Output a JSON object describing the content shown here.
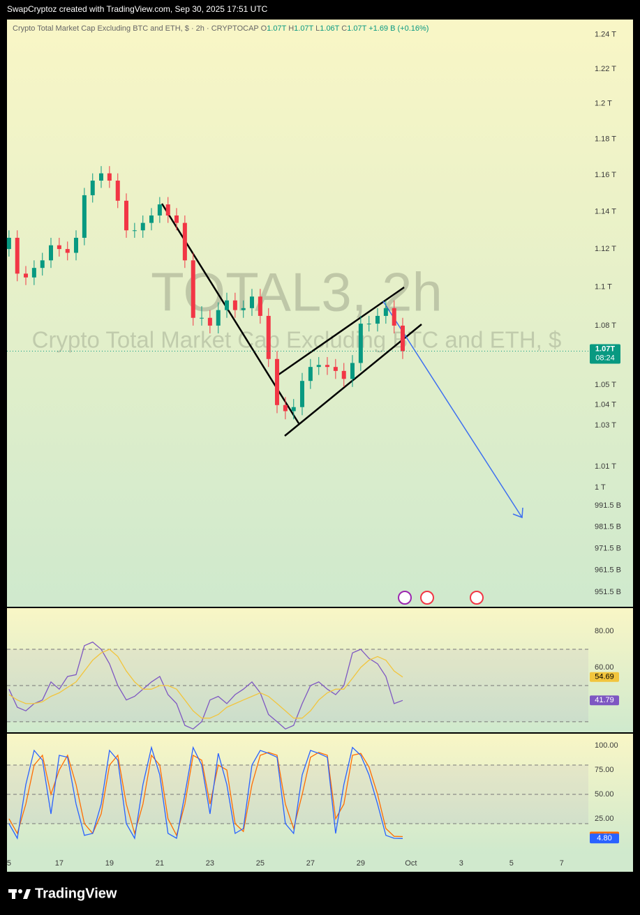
{
  "header": {
    "text": "SwapCryptoz created with TradingView.com, Sep 30, 2025 17:51 UTC"
  },
  "footer": {
    "brand": "TradingView"
  },
  "chart_data": [
    {
      "type": "candlestick",
      "legend": {
        "title": "Crypto Total Market Cap Excluding BTC and ETH, $ · 2h · CRYPTOCAP",
        "o_label": "O",
        "o": "1.07T",
        "h_label": "H",
        "h": "1.07T",
        "l_label": "L",
        "l": "1.06T",
        "c_label": "C",
        "c": "1.07T",
        "change": "+1.69 B (+0.16%)"
      },
      "watermark_symbol": "TOTAL3, 2h",
      "watermark_description": "Crypto Total Market Cap Excluding BTC and ETH, $",
      "last_price_label": "1.07T",
      "countdown": "08:24",
      "log_scale": true,
      "up_color": "#089981",
      "down_color": "#f23645",
      "x": [
        15,
        15.33,
        15.67,
        16,
        16.33,
        16.67,
        17,
        17.33,
        17.67,
        18,
        18.33,
        18.67,
        19,
        19.33,
        19.67,
        20,
        20.33,
        20.67,
        21,
        21.33,
        21.67,
        22,
        22.33,
        22.67,
        23,
        23.33,
        23.67,
        24,
        24.33,
        24.67,
        25,
        25.33,
        25.67,
        26,
        26.33,
        26.67,
        27,
        27.33,
        27.67,
        28,
        28.33,
        28.67,
        29,
        29.33,
        29.67,
        30,
        30.33,
        30.67
      ],
      "open": [
        1120,
        1126,
        1107,
        1105,
        1110,
        1114,
        1122,
        1120,
        1118,
        1126,
        1149,
        1157,
        1161,
        1157,
        1146,
        1130,
        1130,
        1134,
        1138,
        1144,
        1138,
        1134,
        1114,
        1084,
        1084,
        1080,
        1088,
        1093,
        1088,
        1089,
        1095,
        1085,
        1063,
        1040,
        1037,
        1039,
        1052,
        1059,
        1060,
        1059,
        1057,
        1053,
        1061,
        1081,
        1081,
        1085,
        1089,
        1080
      ],
      "high": [
        1130,
        1130,
        1111,
        1114,
        1118,
        1126,
        1126,
        1124,
        1130,
        1153,
        1161,
        1165,
        1165,
        1161,
        1150,
        1134,
        1138,
        1142,
        1148,
        1148,
        1142,
        1138,
        1118,
        1090,
        1088,
        1092,
        1097,
        1097,
        1093,
        1099,
        1099,
        1089,
        1067,
        1044,
        1043,
        1056,
        1063,
        1064,
        1064,
        1063,
        1061,
        1065,
        1085,
        1085,
        1089,
        1093,
        1093,
        1084
      ],
      "low": [
        1116,
        1103,
        1101,
        1101,
        1106,
        1110,
        1116,
        1114,
        1114,
        1122,
        1145,
        1153,
        1153,
        1142,
        1126,
        1126,
        1126,
        1130,
        1134,
        1134,
        1130,
        1110,
        1080,
        1080,
        1076,
        1076,
        1084,
        1084,
        1084,
        1085,
        1081,
        1059,
        1036,
        1033,
        1033,
        1035,
        1048,
        1055,
        1055,
        1053,
        1049,
        1049,
        1057,
        1077,
        1077,
        1081,
        1076,
        1063
      ],
      "close": [
        1126,
        1107,
        1105,
        1110,
        1114,
        1122,
        1120,
        1118,
        1126,
        1149,
        1157,
        1161,
        1157,
        1146,
        1130,
        1130,
        1134,
        1138,
        1144,
        1138,
        1134,
        1114,
        1084,
        1084,
        1080,
        1088,
        1093,
        1088,
        1089,
        1095,
        1085,
        1063,
        1040,
        1037,
        1039,
        1052,
        1059,
        1060,
        1059,
        1057,
        1053,
        1061,
        1081,
        1081,
        1085,
        1089,
        1080,
        1067
      ],
      "xlim": [
        14.92,
        38.06
      ],
      "ylim": [
        945,
        1249
      ],
      "yticks": [
        {
          "value": 1240,
          "label": "1.24 T"
        },
        {
          "value": 1220,
          "label": "1.22 T"
        },
        {
          "value": 1200,
          "label": "1.2 T"
        },
        {
          "value": 1180,
          "label": "1.18 T"
        },
        {
          "value": 1160,
          "label": "1.16 T"
        },
        {
          "value": 1140,
          "label": "1.14 T"
        },
        {
          "value": 1120,
          "label": "1.12 T"
        },
        {
          "value": 1100,
          "label": "1.1 T"
        },
        {
          "value": 1080,
          "label": "1.08 T"
        },
        {
          "value": 1050,
          "label": "1.05 T"
        },
        {
          "value": 1040,
          "label": "1.04 T"
        },
        {
          "value": 1030,
          "label": "1.03 T"
        },
        {
          "value": 1010,
          "label": "1.01 T"
        },
        {
          "value": 1000,
          "label": "1 T"
        },
        {
          "value": 991.5,
          "label": "991.5 B"
        },
        {
          "value": 981.5,
          "label": "981.5 B"
        },
        {
          "value": 971.5,
          "label": "971.5 B"
        },
        {
          "value": 961.5,
          "label": "961.5 B"
        },
        {
          "value": 951.5,
          "label": "951.5 B"
        }
      ]
    },
    {
      "type": "line",
      "x": [
        15,
        15.33,
        15.67,
        16,
        16.33,
        16.67,
        17,
        17.33,
        17.67,
        18,
        18.33,
        18.67,
        19,
        19.33,
        19.67,
        20,
        20.33,
        20.67,
        21,
        21.33,
        21.67,
        22,
        22.33,
        22.67,
        23,
        23.33,
        23.67,
        24,
        24.33,
        24.67,
        25,
        25.33,
        25.67,
        26,
        26.33,
        26.67,
        27,
        27.33,
        27.67,
        28,
        28.33,
        28.67,
        29,
        29.33,
        29.67,
        30,
        30.33,
        30.67
      ],
      "series": [
        {
          "color": "#7e57c2",
          "values": [
            48,
            38,
            36,
            40,
            42,
            52,
            48,
            55,
            56,
            72,
            74,
            70,
            62,
            50,
            42,
            44,
            48,
            52,
            55,
            45,
            40,
            28,
            26,
            30,
            42,
            44,
            40,
            45,
            48,
            52,
            46,
            34,
            30,
            26,
            28,
            40,
            50,
            52,
            48,
            45,
            50,
            68,
            70,
            65,
            62,
            55,
            40,
            41.79
          ]
        },
        {
          "color": "#f2c53d",
          "values": [
            45,
            42,
            40,
            40,
            41,
            44,
            46,
            49,
            52,
            58,
            64,
            68,
            70,
            66,
            58,
            52,
            48,
            48,
            50,
            50,
            48,
            42,
            36,
            32,
            32,
            34,
            38,
            40,
            42,
            44,
            46,
            44,
            40,
            36,
            32,
            32,
            36,
            42,
            46,
            48,
            48,
            54,
            60,
            64,
            66,
            64,
            58,
            54.69
          ]
        }
      ],
      "bands": [
        70,
        50,
        30
      ],
      "xlim": [
        14.92,
        38.06
      ],
      "ylim": [
        24.2,
        92.7
      ],
      "yticks": [
        {
          "value": 80,
          "label": "80.00"
        },
        {
          "value": 60,
          "label": "60.00"
        }
      ]
    },
    {
      "type": "line",
      "x": [
        15,
        15.33,
        15.67,
        16,
        16.33,
        16.67,
        17,
        17.33,
        17.67,
        18,
        18.33,
        18.67,
        19,
        19.33,
        19.67,
        20,
        20.33,
        20.67,
        21,
        21.33,
        21.67,
        22,
        22.33,
        22.67,
        23,
        23.33,
        23.67,
        24,
        24.33,
        24.67,
        25,
        25.33,
        25.67,
        26,
        26.33,
        26.67,
        27,
        27.33,
        27.67,
        28,
        28.33,
        28.67,
        29,
        29.33,
        29.67,
        30,
        30.33,
        30.67
      ],
      "series": [
        {
          "color": "#ff6d00",
          "values": [
            25,
            10,
            40,
            80,
            90,
            50,
            75,
            90,
            60,
            20,
            10,
            30,
            80,
            90,
            40,
            10,
            40,
            90,
            80,
            25,
            8,
            40,
            90,
            85,
            40,
            80,
            75,
            20,
            12,
            60,
            90,
            93,
            90,
            40,
            15,
            50,
            88,
            93,
            90,
            25,
            40,
            90,
            92,
            78,
            50,
            15,
            7,
            6.79
          ]
        },
        {
          "color": "#2962ff",
          "values": [
            20,
            5,
            60,
            95,
            85,
            30,
            90,
            88,
            40,
            8,
            10,
            40,
            95,
            85,
            20,
            5,
            60,
            98,
            70,
            10,
            5,
            50,
            98,
            80,
            30,
            92,
            60,
            10,
            15,
            80,
            95,
            92,
            88,
            20,
            10,
            70,
            95,
            92,
            88,
            10,
            60,
            98,
            90,
            70,
            40,
            8,
            5,
            4.8
          ],
          "value_labels": [
            null,
            null,
            null,
            null,
            null,
            null,
            null,
            null,
            null,
            null,
            null,
            null,
            null,
            null,
            null,
            null,
            null,
            null,
            null,
            null,
            null,
            null,
            null,
            null,
            null,
            null,
            null,
            null,
            null,
            null,
            null,
            null,
            null,
            null,
            null,
            null,
            null,
            null,
            null,
            null,
            null,
            null,
            null,
            null,
            null,
            null,
            null,
            "4.80"
          ]
        }
      ],
      "bands": [
        80,
        50,
        20
      ],
      "xlim": [
        14.92,
        38.06
      ],
      "ylim": [
        -11.4,
        112.1
      ],
      "yticks": [
        {
          "value": 100,
          "label": "100.00"
        },
        {
          "value": 75,
          "label": "75.00"
        },
        {
          "value": 50,
          "label": "50.00"
        },
        {
          "value": 25,
          "label": "25.00"
        }
      ],
      "xticks": [
        {
          "value": 15,
          "label": "5"
        },
        17,
        19,
        21,
        23,
        25,
        27,
        29,
        {
          "value": 31,
          "label": "Oct"
        },
        {
          "value": 33,
          "label": "3"
        },
        {
          "value": 35,
          "label": "5"
        },
        {
          "value": 37,
          "label": "7"
        }
      ]
    }
  ]
}
